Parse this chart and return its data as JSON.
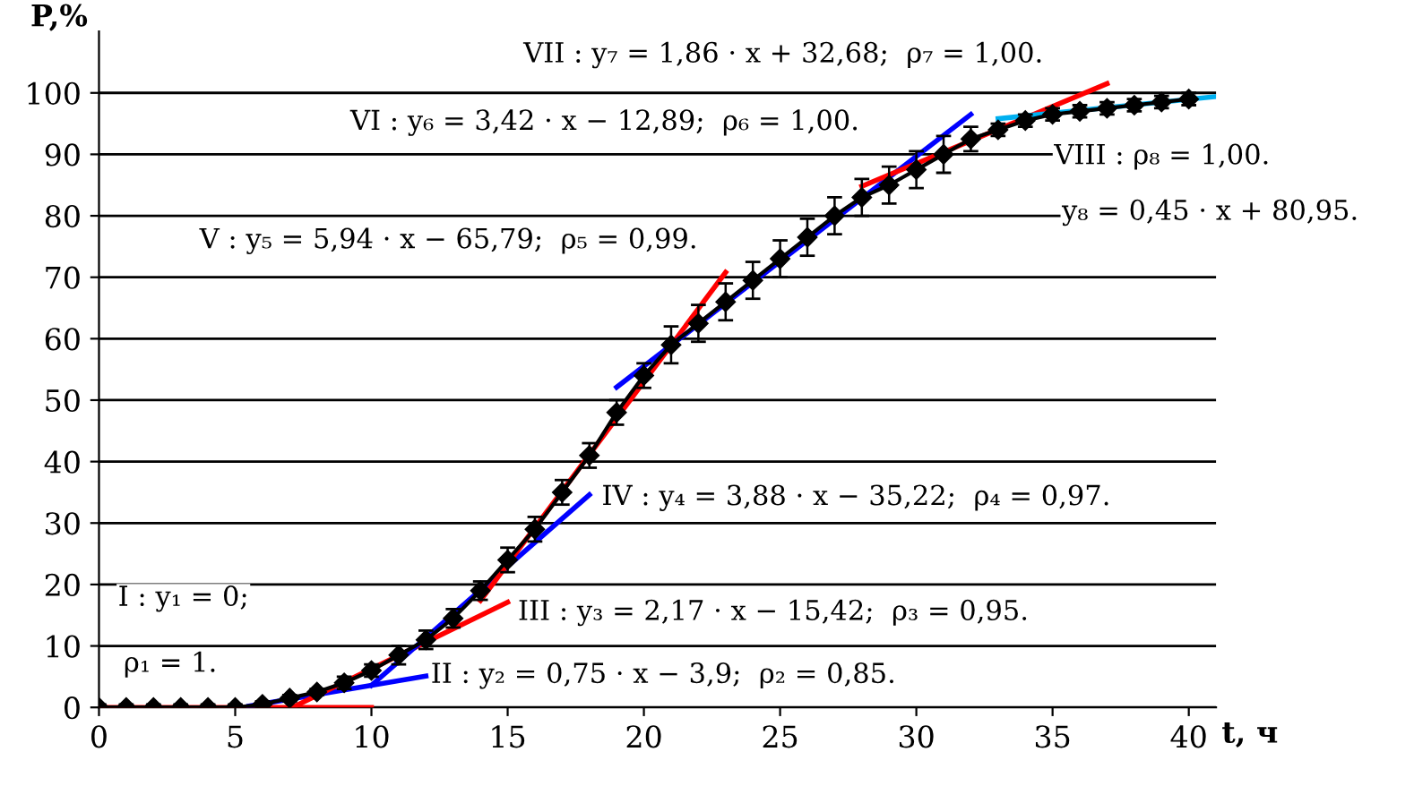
{
  "chart_data": {
    "type": "line",
    "xlabel": "t, ч",
    "ylabel": "P,%",
    "xlim": [
      0,
      41
    ],
    "ylim": [
      0,
      110
    ],
    "xticks": [
      0,
      5,
      10,
      15,
      20,
      25,
      30,
      35,
      40
    ],
    "yticks": [
      0,
      10,
      20,
      30,
      40,
      50,
      60,
      70,
      80,
      90,
      100
    ],
    "grid": "y",
    "legend": false,
    "series": [
      {
        "color": "#000000",
        "marker": "diamond",
        "x": [
          0,
          1,
          2,
          3,
          4,
          5,
          6,
          7,
          8,
          9,
          10,
          11,
          12,
          13,
          14,
          15,
          16,
          17,
          18,
          19,
          20,
          21,
          22,
          23,
          24,
          25,
          26,
          27,
          28,
          29,
          30,
          31,
          32,
          33,
          34,
          35,
          36,
          37,
          38,
          39,
          40
        ],
        "values": [
          0,
          0,
          0,
          0,
          0,
          0,
          0.5,
          1.5,
          2.5,
          4,
          6,
          8.5,
          11,
          14.5,
          19,
          24,
          29,
          35,
          41,
          48,
          54,
          59,
          62.5,
          66,
          69.5,
          73,
          76.5,
          80,
          83,
          85,
          87.5,
          90,
          92.5,
          94,
          95.5,
          96.5,
          97,
          97.5,
          98,
          98.5,
          99
        ],
        "errors": [
          0.5,
          0.5,
          0.5,
          0.5,
          0.5,
          0.5,
          0.5,
          0.5,
          0.5,
          1,
          1,
          1.5,
          1.5,
          1.5,
          1.5,
          2,
          2,
          2,
          2,
          2,
          2,
          3,
          3,
          3,
          3,
          3,
          3,
          3,
          3,
          3,
          3,
          3,
          2,
          1,
          1,
          1,
          1,
          1,
          1,
          1,
          1
        ]
      },
      {
        "color": "#ff0000",
        "x": [
          0,
          10
        ],
        "values": [
          0,
          0
        ]
      },
      {
        "color": "#0000ff",
        "x": [
          5.5,
          12
        ],
        "values": [
          0.2,
          5.1
        ]
      },
      {
        "color": "#ff0000",
        "x": [
          7.1,
          15
        ],
        "values": [
          0,
          17.1
        ]
      },
      {
        "color": "#0000ff",
        "x": [
          10,
          18
        ],
        "values": [
          3.6,
          34.6
        ]
      },
      {
        "color": "#ff0000",
        "x": [
          14,
          23
        ],
        "values": [
          17.4,
          70.8
        ]
      },
      {
        "color": "#0000ff",
        "x": [
          19,
          32
        ],
        "values": [
          52.1,
          96.5
        ]
      },
      {
        "color": "#ff0000",
        "x": [
          28,
          37
        ],
        "values": [
          84.8,
          101.5
        ]
      },
      {
        "color": "#00b0f0",
        "x": [
          33,
          41
        ],
        "values": [
          95.8,
          99.4
        ]
      }
    ],
    "annotations": [
      "VII : y₇ = 1,86 · x + 32,68;  ρ₇ = 1,00.",
      "VI : y₆ = 3,42 · x − 12,89;  ρ₆ = 1,00.",
      "V : y₅ = 5,94 · x − 65,79;  ρ₅ = 0,99.",
      "VIII : ρ₈ = 1,00.",
      "y₈ = 0,45 · x + 80,95.",
      "IV : y₄ = 3,88 · x − 35,22;  ρ₄ = 0,97.",
      "III : y₃ = 2,17 · x − 15,42;  ρ₃ = 0,95.",
      "II : y₂ = 0,75 · x − 3,9;  ρ₂ = 0,85.",
      "I : y₁ = 0;",
      "ρ₁ = 1."
    ]
  }
}
